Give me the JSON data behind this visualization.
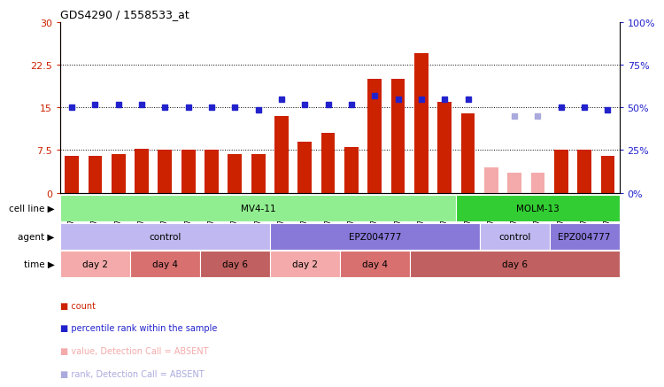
{
  "title": "GDS4290 / 1558533_at",
  "samples": [
    "GSM739151",
    "GSM739152",
    "GSM739153",
    "GSM739157",
    "GSM739158",
    "GSM739159",
    "GSM739163",
    "GSM739164",
    "GSM739165",
    "GSM739148",
    "GSM739149",
    "GSM739150",
    "GSM739154",
    "GSM739155",
    "GSM739156",
    "GSM739160",
    "GSM739161",
    "GSM739162",
    "GSM739169",
    "GSM739170",
    "GSM739171",
    "GSM739166",
    "GSM739167",
    "GSM739168"
  ],
  "count_values": [
    6.5,
    6.5,
    6.8,
    7.8,
    7.5,
    7.5,
    7.5,
    6.8,
    6.8,
    13.5,
    9.0,
    10.5,
    8.0,
    20.0,
    20.0,
    24.5,
    16.0,
    14.0,
    4.5,
    3.5,
    3.5,
    7.5,
    7.5,
    6.5
  ],
  "count_absent": [
    false,
    false,
    false,
    false,
    false,
    false,
    false,
    false,
    false,
    false,
    false,
    false,
    false,
    false,
    false,
    false,
    false,
    false,
    true,
    true,
    true,
    false,
    false,
    false
  ],
  "rank_values": [
    15.0,
    15.5,
    15.5,
    15.5,
    15.0,
    15.0,
    15.0,
    15.0,
    14.5,
    16.5,
    15.5,
    15.5,
    15.5,
    17.0,
    16.5,
    16.5,
    16.5,
    16.5,
    null,
    13.5,
    13.5,
    15.0,
    15.0,
    14.5
  ],
  "rank_absent": [
    false,
    false,
    false,
    false,
    false,
    false,
    false,
    false,
    false,
    false,
    false,
    false,
    false,
    false,
    false,
    false,
    false,
    false,
    false,
    true,
    true,
    false,
    false,
    false
  ],
  "cell_line_groups": [
    {
      "label": "MV4-11",
      "start": 0,
      "end": 17,
      "color": "#90EE90"
    },
    {
      "label": "MOLM-13",
      "start": 17,
      "end": 24,
      "color": "#32CD32"
    }
  ],
  "agent_groups": [
    {
      "label": "control",
      "start": 0,
      "end": 9,
      "color": "#C0B8F0"
    },
    {
      "label": "EPZ004777",
      "start": 9,
      "end": 18,
      "color": "#8878D8"
    },
    {
      "label": "control",
      "start": 18,
      "end": 21,
      "color": "#C0B8F0"
    },
    {
      "label": "EPZ004777",
      "start": 21,
      "end": 24,
      "color": "#8878D8"
    }
  ],
  "time_groups": [
    {
      "label": "day 2",
      "start": 0,
      "end": 3,
      "color": "#F4AAAA"
    },
    {
      "label": "day 4",
      "start": 3,
      "end": 6,
      "color": "#D87070"
    },
    {
      "label": "day 6",
      "start": 6,
      "end": 9,
      "color": "#C06060"
    },
    {
      "label": "day 2",
      "start": 9,
      "end": 12,
      "color": "#F4AAAA"
    },
    {
      "label": "day 4",
      "start": 12,
      "end": 15,
      "color": "#D87070"
    },
    {
      "label": "day 6",
      "start": 15,
      "end": 24,
      "color": "#C06060"
    }
  ],
  "bar_color_present": "#CC2200",
  "bar_color_absent": "#F4AAAA",
  "dot_color_present": "#2222CC",
  "dot_color_absent": "#AAAADD",
  "ylim_left": [
    0,
    30
  ],
  "ylim_right": [
    0,
    100
  ],
  "yticks_left": [
    0,
    7.5,
    15,
    22.5,
    30
  ],
  "yticks_right": [
    0,
    25,
    50,
    75,
    100
  ],
  "ytick_labels_left": [
    "0",
    "7.5",
    "15",
    "22.5",
    "30"
  ],
  "ytick_labels_right": [
    "0%",
    "25%",
    "50%",
    "75%",
    "100%"
  ],
  "hlines": [
    7.5,
    15.0,
    22.5
  ],
  "legend_items": [
    {
      "label": "count",
      "color": "#CC2200"
    },
    {
      "label": "percentile rank within the sample",
      "color": "#2222CC"
    },
    {
      "label": "value, Detection Call = ABSENT",
      "color": "#F4AAAA"
    },
    {
      "label": "rank, Detection Call = ABSENT",
      "color": "#AAAADD"
    }
  ],
  "row_labels": [
    "cell line",
    "agent",
    "time"
  ]
}
